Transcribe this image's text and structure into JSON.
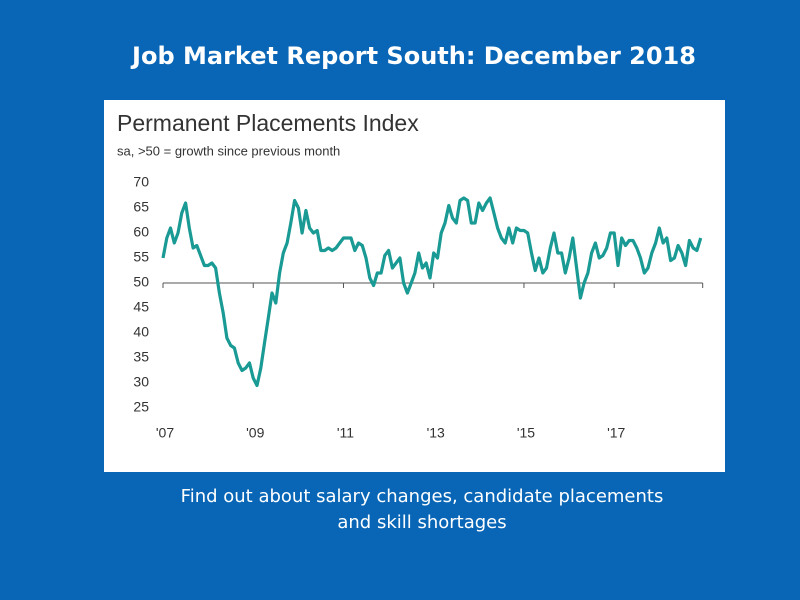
{
  "header": {
    "title": "Job Market Report South: December 2018"
  },
  "chart_data": {
    "type": "line",
    "title": "Permanent Placements Index",
    "subtitle": "sa, >50 = growth since previous month",
    "categories": [
      "'07",
      null,
      null,
      null,
      null,
      null,
      null,
      null,
      null,
      null,
      null,
      null,
      null,
      null,
      null,
      null,
      null,
      null,
      null,
      null,
      null,
      null,
      null,
      null,
      "'09",
      null,
      null,
      null,
      null,
      null,
      null,
      null,
      null,
      null,
      null,
      null,
      null,
      null,
      null,
      null,
      null,
      null,
      null,
      null,
      null,
      null,
      null,
      null,
      "'11",
      null,
      null,
      null,
      null,
      null,
      null,
      null,
      null,
      null,
      null,
      null,
      null,
      null,
      null,
      null,
      null,
      null,
      null,
      null,
      null,
      null,
      null,
      null,
      "'13",
      null,
      null,
      null,
      null,
      null,
      null,
      null,
      null,
      null,
      null,
      null,
      null,
      null,
      null,
      null,
      null,
      null,
      null,
      null,
      null,
      null,
      null,
      null,
      "'15",
      null,
      null,
      null,
      null,
      null,
      null,
      null,
      null,
      null,
      null,
      null,
      null,
      null,
      null,
      null,
      null,
      null,
      null,
      null,
      null,
      null,
      null,
      null,
      "'17",
      null,
      null,
      null,
      null,
      null,
      null,
      null,
      null,
      null,
      null,
      null,
      null,
      null,
      null,
      null,
      null,
      null,
      null,
      null,
      null,
      null,
      null,
      null
    ],
    "series": [
      {
        "name": "Permanent Placements Index",
        "color": "#1a9a94",
        "values": [
          55,
          59,
          61,
          58,
          60,
          64,
          66,
          61,
          57,
          57.5,
          55.5,
          53.5,
          53.5,
          54,
          53,
          48,
          44,
          39,
          37.5,
          37,
          34,
          32.5,
          33,
          34,
          31,
          29.5,
          33,
          38,
          43,
          48,
          46,
          52,
          56,
          58,
          62,
          66.5,
          65,
          60,
          64.5,
          61,
          60,
          60.5,
          56.5,
          56.5,
          57,
          56.5,
          57,
          58,
          59,
          59,
          59,
          56.5,
          58,
          57.5,
          55,
          51,
          49.5,
          52,
          52,
          55.5,
          56.5,
          53,
          54,
          55,
          50,
          48,
          50,
          52,
          56,
          53,
          54,
          51,
          56,
          55,
          60,
          62,
          65.5,
          63,
          62,
          66.5,
          67,
          66.5,
          62,
          62,
          66,
          64.5,
          66,
          67,
          64,
          61,
          59,
          58,
          61,
          58,
          61,
          60.5,
          60.5,
          60,
          56,
          52.5,
          55,
          52,
          53,
          57,
          60,
          56,
          56,
          52,
          55,
          59,
          53,
          47,
          50,
          52,
          56,
          58,
          55,
          55.5,
          57,
          60,
          60,
          53.5,
          59,
          57.5,
          58.5,
          58.5,
          57,
          55,
          52,
          53,
          56,
          58,
          61,
          58,
          59,
          54.5,
          55,
          57.5,
          56,
          53.5,
          58.5,
          57,
          56.5,
          59
        ]
      }
    ],
    "ylim": [
      25,
      70
    ],
    "yticks": [
      25,
      30,
      35,
      40,
      45,
      50,
      55,
      60,
      65,
      70
    ],
    "baseline": 50
  },
  "footer": {
    "lines": [
      "Find out about salary changes, candidate placements",
      "and skill shortages"
    ]
  }
}
